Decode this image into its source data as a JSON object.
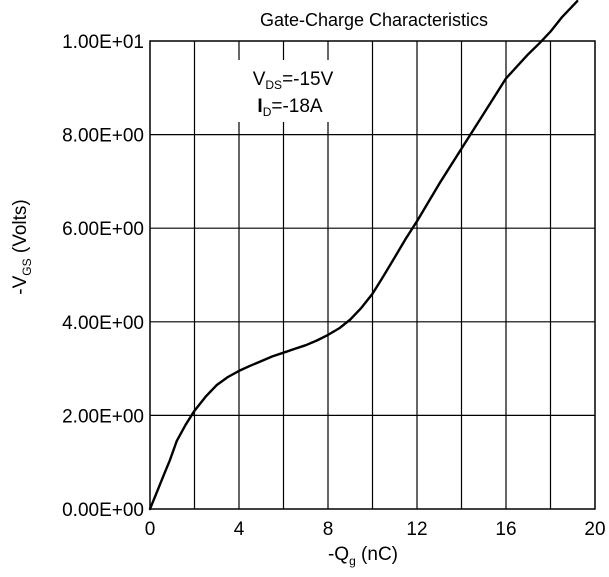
{
  "chart_data": {
    "type": "line",
    "title": "Gate-Charge Characteristics",
    "xlabel": {
      "prefix": "-Q",
      "sub": "g",
      "suffix": " (nC)"
    },
    "ylabel": {
      "prefix": "-V",
      "sub": "GS",
      "suffix": " (Volts)"
    },
    "xlim": [
      0,
      20
    ],
    "ylim": [
      0,
      10
    ],
    "x_ticks": [
      0,
      4,
      8,
      12,
      16,
      20
    ],
    "x_tick_labels": [
      "0",
      "4",
      "8",
      "12",
      "16",
      "20"
    ],
    "y_ticks": [
      0,
      2,
      4,
      6,
      8,
      10
    ],
    "y_tick_labels": [
      "0.00E+00",
      "2.00E+00",
      "4.00E+00",
      "6.00E+00",
      "8.00E+00",
      "1.00E+01"
    ],
    "x_gridlines": [
      2,
      4,
      6,
      8,
      10,
      12,
      14,
      16,
      18
    ],
    "y_gridlines": [
      2,
      4,
      6,
      8
    ],
    "grid": true,
    "annotation": {
      "line1": {
        "prefix": "V",
        "sub": "DS",
        "suffix": "=-15V"
      },
      "line2": {
        "prefix": "I",
        "sub": "D",
        "suffix": "=-18A"
      }
    },
    "series": [
      {
        "color": "#000000",
        "x": [
          0,
          0.3,
          0.6,
          0.9,
          1.2,
          1.6,
          2.0,
          2.5,
          3.0,
          3.5,
          4.0,
          4.5,
          5.0,
          5.5,
          6.0,
          6.5,
          7.0,
          7.5,
          8.0,
          8.5,
          9.0,
          9.5,
          10.0,
          10.5,
          11.0,
          11.5,
          12.0,
          13.0,
          14.0,
          15.0,
          16.0,
          17.0,
          17.5,
          18.0,
          18.5,
          19.2
        ],
        "y": [
          0.0,
          0.35,
          0.7,
          1.05,
          1.45,
          1.8,
          2.1,
          2.4,
          2.65,
          2.82,
          2.95,
          3.06,
          3.16,
          3.26,
          3.34,
          3.42,
          3.5,
          3.6,
          3.72,
          3.86,
          4.05,
          4.3,
          4.6,
          4.98,
          5.38,
          5.78,
          6.15,
          6.95,
          7.7,
          8.45,
          9.2,
          9.72,
          9.95,
          10.2,
          10.5,
          10.85
        ]
      }
    ]
  }
}
